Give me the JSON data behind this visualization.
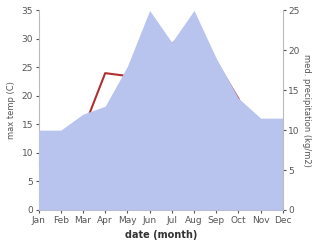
{
  "months": [
    "Jan",
    "Feb",
    "Mar",
    "Apr",
    "May",
    "Jun",
    "Jul",
    "Aug",
    "Sep",
    "Oct",
    "Nov",
    "Dec"
  ],
  "temperature": [
    8.0,
    13.5,
    14.0,
    24.0,
    23.5,
    31.0,
    29.0,
    33.0,
    26.0,
    19.5,
    10.5,
    8.0
  ],
  "precipitation": [
    10.0,
    10.0,
    12.0,
    13.0,
    18.0,
    25.0,
    21.0,
    25.0,
    19.0,
    14.0,
    11.5,
    11.5
  ],
  "temp_color": "#b03030",
  "precip_color": "#b8c4ee",
  "ylabel_left": "max temp (C)",
  "ylabel_right": "med. precipitation (kg/m2)",
  "xlabel": "date (month)",
  "ylim_left": [
    0,
    35
  ],
  "ylim_right": [
    0,
    25
  ],
  "yticks_left": [
    0,
    5,
    10,
    15,
    20,
    25,
    30,
    35
  ],
  "yticks_right": [
    0,
    5,
    10,
    15,
    20,
    25
  ],
  "background_color": "#ffffff"
}
